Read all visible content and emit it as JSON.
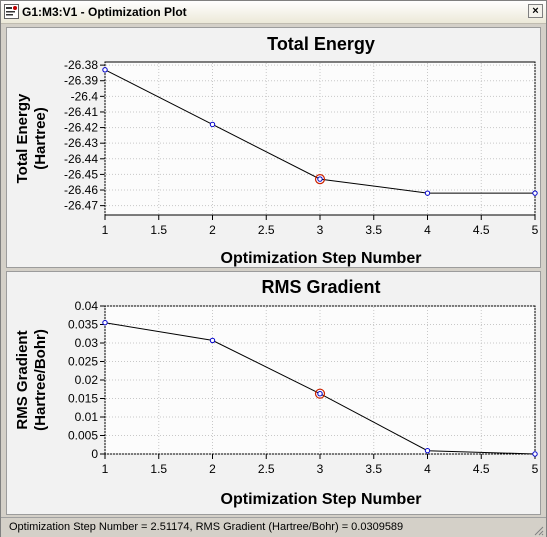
{
  "window": {
    "title": "G1:M3:V1 - Optimization Plot",
    "close_label": "×"
  },
  "status": {
    "text": "Optimization Step Number = 2.51174,  RMS Gradient (Hartree/Bohr) = 0.0309589"
  },
  "chart_data": [
    {
      "type": "line",
      "title": "Total Energy",
      "ylabel": [
        "Total Energy",
        "(Hartree)"
      ],
      "xlabel": "Optimization Step Number",
      "x": [
        1,
        2,
        3,
        4,
        5
      ],
      "series": [
        {
          "values": [
            -26.383,
            -26.418,
            -26.453,
            -26.462,
            -26.462
          ]
        }
      ],
      "xlim": [
        1,
        5
      ],
      "ylim": [
        -26.476,
        -26.378
      ],
      "xticks": [
        1,
        1.5,
        2,
        2.5,
        3,
        3.5,
        4,
        4.5,
        5
      ],
      "xtick_labels": [
        "1",
        "1.5",
        "2",
        "2.5",
        "3",
        "3.5",
        "4",
        "4.5",
        "5"
      ],
      "yticks": [
        -26.38,
        -26.39,
        -26.4,
        -26.41,
        -26.42,
        -26.43,
        -26.44,
        -26.45,
        -26.46,
        -26.47
      ],
      "ytick_labels": [
        "-26.38",
        "-26.39",
        "-26.4",
        "-26.41",
        "-26.42",
        "-26.43",
        "-26.44",
        "-26.45",
        "-26.46",
        "-26.47"
      ],
      "highlight_index": 2,
      "line_color": "#000000",
      "point_color": "#0000cc",
      "highlight_color": "#cc2200"
    },
    {
      "type": "line",
      "title": "RMS Gradient",
      "ylabel": [
        "RMS Gradient",
        "(Hartree/Bohr)"
      ],
      "xlabel": "Optimization Step Number",
      "x": [
        1,
        2,
        3,
        4,
        5
      ],
      "series": [
        {
          "values": [
            0.0355,
            0.0307,
            0.0163,
            0.0009,
            0.0
          ]
        }
      ],
      "xlim": [
        1,
        5
      ],
      "ylim": [
        0,
        0.04
      ],
      "xticks": [
        1,
        1.5,
        2,
        2.5,
        3,
        3.5,
        4,
        4.5,
        5
      ],
      "xtick_labels": [
        "1",
        "1.5",
        "2",
        "2.5",
        "3",
        "3.5",
        "4",
        "4.5",
        "5"
      ],
      "yticks": [
        0.04,
        0.035,
        0.03,
        0.025,
        0.02,
        0.015,
        0.01,
        0.005,
        0
      ],
      "ytick_labels": [
        "0.04",
        "0.035",
        "0.03",
        "0.025",
        "0.02",
        "0.015",
        "0.01",
        "0.005",
        "0"
      ],
      "highlight_index": 2,
      "line_color": "#000000",
      "point_color": "#0000cc",
      "highlight_color": "#cc2200"
    }
  ]
}
